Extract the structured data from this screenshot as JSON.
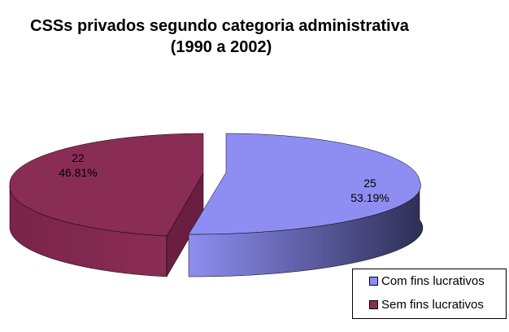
{
  "chart_data": {
    "type": "pie",
    "title_line1": "CSSs privados segundo categoria administrativa",
    "title_line2": "(1990 a 2002)",
    "slices": [
      {
        "label": "Com fins lucrativos",
        "value": 25,
        "percent_label": "53.19%",
        "value_label": "25",
        "color": "#8e8ef2",
        "side_color": "#3a3a6a"
      },
      {
        "label": "Sem fins lucrativos",
        "value": 22,
        "percent_label": "46.81%",
        "value_label": "22",
        "color": "#8a2d55",
        "side_color": "#6a1f40"
      }
    ],
    "legend": {
      "placement": "bottom-right"
    },
    "style": "3d-exploded"
  }
}
